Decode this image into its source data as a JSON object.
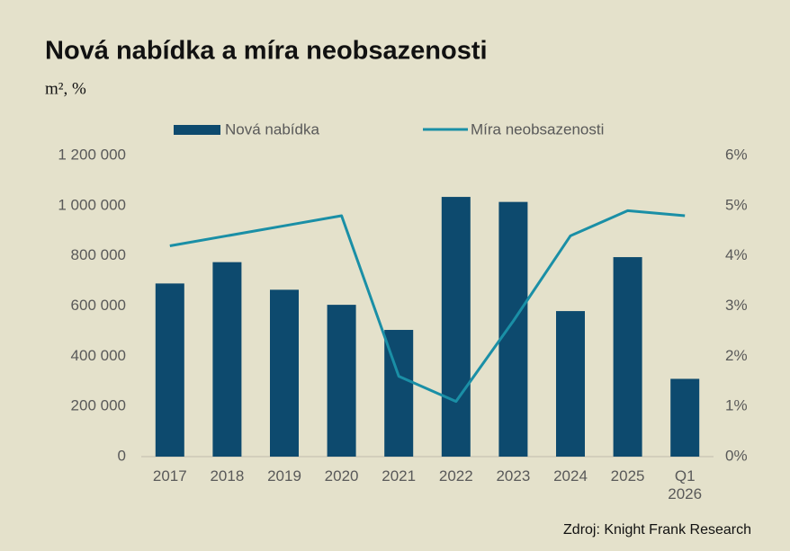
{
  "chart_data": {
    "type": "bar_line",
    "title": "Nová nabídka a míra neobsazenosti",
    "subtitle": "m², %",
    "source": "Zdroj: Knight Frank Research",
    "categories": [
      "2017",
      "2018",
      "2019",
      "2020",
      "2021",
      "2022",
      "2023",
      "2024",
      "2025",
      "Q1 2026"
    ],
    "series": [
      {
        "name": "Nová nabídka",
        "type": "bar",
        "color": "#0d4a6e",
        "axis": "y",
        "values": [
          690000,
          775000,
          665000,
          605000,
          505000,
          1035000,
          1015000,
          580000,
          795000,
          310000
        ]
      },
      {
        "name": "Míra neobsazenosti",
        "type": "line",
        "color": "#1a8fa6",
        "axis": "y2",
        "values": [
          4.2,
          4.4,
          4.6,
          4.8,
          1.6,
          1.1,
          2.7,
          4.4,
          4.9,
          4.8
        ]
      }
    ],
    "ylim": [
      0,
      1200000
    ],
    "yticks": [
      0,
      {
        "value": 200000,
        "label": "200 000"
      },
      {
        "value": 400000,
        "label": "400 000"
      },
      {
        "value": 600000,
        "label": "600 000"
      },
      {
        "value": 800000,
        "label": "800 000"
      },
      {
        "value": 1000000,
        "label": "1 000 000"
      },
      {
        "value": 1200000,
        "label": "1 200 000"
      }
    ],
    "y2lim": [
      0,
      6
    ],
    "y2ticks": [
      {
        "value": 0,
        "label": "0%"
      },
      {
        "value": 1,
        "label": "1%"
      },
      {
        "value": 2,
        "label": "2%"
      },
      {
        "value": 3,
        "label": "3%"
      },
      {
        "value": 4,
        "label": "4%"
      },
      {
        "value": 5,
        "label": "5%"
      },
      {
        "value": 6,
        "label": "6%"
      }
    ],
    "grid": false,
    "legend": "top"
  }
}
